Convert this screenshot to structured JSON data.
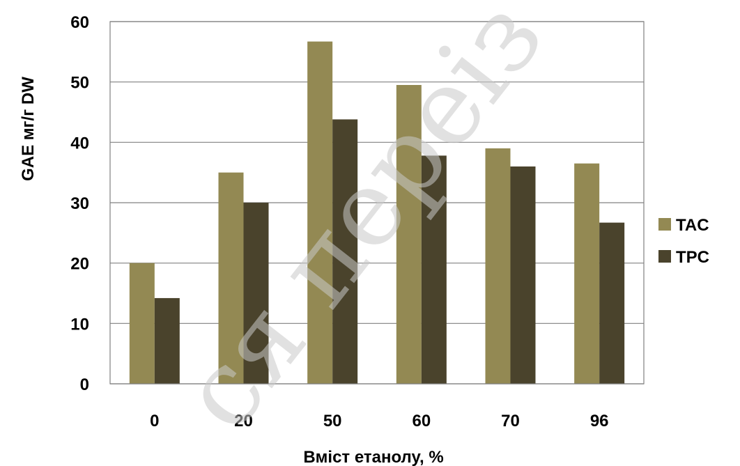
{
  "chart_data": {
    "type": "bar",
    "categories": [
      "0",
      "20",
      "50",
      "60",
      "70",
      "96"
    ],
    "series": [
      {
        "name": "TAC",
        "values": [
          20,
          35,
          56.7,
          49.5,
          39,
          36.5
        ],
        "color": "#938953"
      },
      {
        "name": "TPC",
        "values": [
          14.2,
          30,
          43.8,
          37.8,
          36,
          26.7
        ],
        "color": "#4a432c"
      }
    ],
    "xlabel": "Вміст етанолу, %",
    "ylabel": "GAE мг/г DW",
    "ylim": [
      0,
      60
    ],
    "yticks": [
      "0",
      "10",
      "20",
      "30",
      "40",
      "50",
      "60"
    ],
    "grid": true,
    "legend_position": "right"
  },
  "watermark": "ся переіз"
}
